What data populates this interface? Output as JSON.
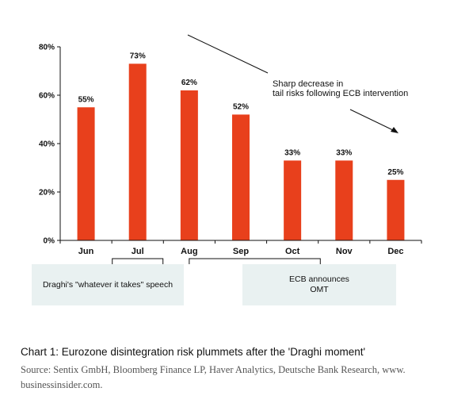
{
  "chart_data": {
    "type": "bar",
    "categories": [
      "Jun",
      "Jul",
      "Aug",
      "Sep",
      "Oct",
      "Nov",
      "Dec"
    ],
    "values": [
      55,
      73,
      62,
      52,
      33,
      33,
      25
    ],
    "data_labels": [
      "55%",
      "73%",
      "62%",
      "52%",
      "33%",
      "33%",
      "25%"
    ],
    "ylim": [
      0,
      80
    ],
    "yticks": [
      0,
      20,
      40,
      60,
      80
    ],
    "ytick_labels": [
      "0%",
      "20%",
      "40%",
      "60%",
      "80%"
    ],
    "bar_color": "#e8401c",
    "grid": false,
    "annotation": {
      "line1": "Sharp decrease in",
      "line2": "tail risks following ECB  intervention"
    }
  },
  "events": [
    {
      "label": "Draghi's \"whatever it takes\" speech"
    },
    {
      "label": "ECB announces\nOMT"
    }
  ],
  "caption": "Chart 1: Eurozone disintegration risk plummets after the 'Draghi moment'",
  "source": "Source: Sentix GmbH, Bloomberg Finance LP, Haver Analytics, Deutsche Bank Research, www. businessinsider.com.",
  "colors": {
    "event_box": "#e9f1f1",
    "bar": "#e8401c"
  }
}
